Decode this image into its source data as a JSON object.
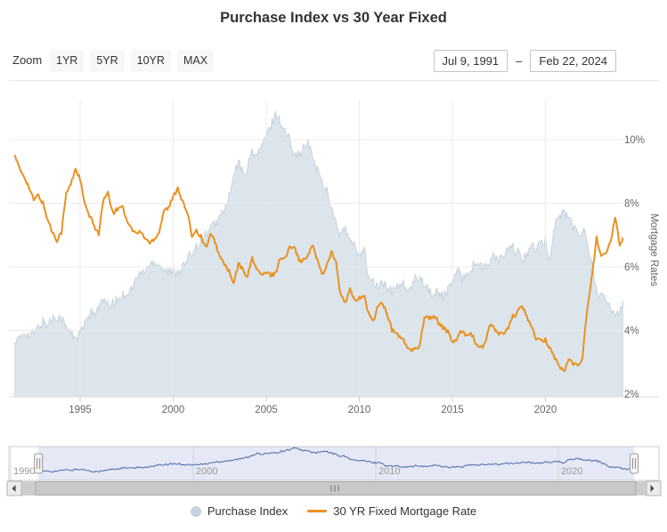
{
  "header": {
    "title": "Purchase Index vs 30 Year Fixed"
  },
  "toolbar": {
    "zoom_label": "Zoom",
    "range_buttons": [
      "1YR",
      "5YR",
      "10YR",
      "MAX"
    ],
    "date_from": "Jul 9, 1991",
    "date_separator": "–",
    "date_to": "Feb 22, 2024"
  },
  "colors": {
    "title_text": "#333333",
    "axis_text": "#666666",
    "nav_text": "#999999",
    "grid": "#e7e7e7",
    "axis_line": "#d8d8d8",
    "tick": "#cccccc",
    "accent_orange": "#ea9120",
    "area_fill": "#dce5ec",
    "area_edge": "#c5d3de",
    "legend_circle": "#c3d3e0",
    "navigator_line": "#4a67a8",
    "navigator_mask": "#5b77be",
    "scrollbar_track": "#cccccc",
    "scrollbar_thumb": "#c8c8c8",
    "scrollbar_border": "#aaaaaa",
    "scrollbar_grip": "#777777",
    "scrollbar_button": "#ececec",
    "scrollbar_arrow": "#4a4a4a"
  },
  "chart_data": {
    "type": "line",
    "title": "Purchase Index vs 30 Year Fixed",
    "x_unit": "decimal_year",
    "x": [
      1991.5,
      1991.75,
      1992,
      1992.25,
      1992.5,
      1992.75,
      1993,
      1993.25,
      1993.5,
      1993.75,
      1994,
      1994.25,
      1994.5,
      1994.75,
      1995,
      1995.25,
      1995.5,
      1995.75,
      1996,
      1996.25,
      1996.5,
      1996.75,
      1997,
      1997.25,
      1997.5,
      1997.75,
      1998,
      1998.25,
      1998.5,
      1998.75,
      1999,
      1999.25,
      1999.5,
      1999.75,
      2000,
      2000.25,
      2000.5,
      2000.75,
      2001,
      2001.25,
      2001.5,
      2001.75,
      2002,
      2002.25,
      2002.5,
      2002.75,
      2003,
      2003.25,
      2003.5,
      2003.75,
      2004,
      2004.25,
      2004.5,
      2004.75,
      2005,
      2005.25,
      2005.5,
      2005.75,
      2006,
      2006.25,
      2006.5,
      2006.75,
      2007,
      2007.25,
      2007.5,
      2007.75,
      2008,
      2008.25,
      2008.5,
      2008.75,
      2009,
      2009.25,
      2009.5,
      2009.75,
      2010,
      2010.25,
      2010.5,
      2010.75,
      2011,
      2011.25,
      2011.5,
      2011.75,
      2012,
      2012.25,
      2012.5,
      2012.75,
      2013,
      2013.25,
      2013.5,
      2013.75,
      2014,
      2014.25,
      2014.5,
      2014.75,
      2015,
      2015.25,
      2015.5,
      2015.75,
      2016,
      2016.25,
      2016.5,
      2016.75,
      2017,
      2017.25,
      2017.5,
      2017.75,
      2018,
      2018.25,
      2018.5,
      2018.75,
      2019,
      2019.25,
      2019.5,
      2019.75,
      2020,
      2020.25,
      2020.5,
      2020.75,
      2021,
      2021.25,
      2021.5,
      2021.75,
      2022,
      2022.25,
      2022.5,
      2022.75,
      2023,
      2023.25,
      2023.5,
      2023.75,
      2024,
      2024.15
    ],
    "series": [
      {
        "name": "Purchase Index",
        "type": "area",
        "color": "#dce5ec",
        "axis": "hidden (no visible scale)",
        "values": [
          90,
          95,
          110,
          100,
          105,
          115,
          125,
          120,
          130,
          135,
          130,
          115,
          105,
          100,
          105,
          120,
          135,
          140,
          150,
          160,
          150,
          155,
          160,
          168,
          172,
          178,
          195,
          205,
          210,
          220,
          225,
          220,
          212,
          208,
          205,
          210,
          215,
          225,
          240,
          252,
          258,
          270,
          278,
          288,
          298,
          310,
          330,
          365,
          390,
          370,
          380,
          410,
          398,
          418,
          430,
          450,
          470,
          458,
          440,
          428,
          408,
          400,
          412,
          420,
          398,
          378,
          355,
          345,
          315,
          285,
          268,
          278,
          258,
          248,
          238,
          248,
          198,
          188,
          183,
          190,
          180,
          173,
          183,
          190,
          180,
          175,
          195,
          200,
          188,
          178,
          168,
          173,
          168,
          175,
          193,
          208,
          198,
          203,
          213,
          223,
          218,
          213,
          223,
          233,
          228,
          233,
          243,
          248,
          238,
          228,
          238,
          250,
          245,
          252,
          258,
          228,
          288,
          298,
          308,
          298,
          282,
          272,
          278,
          258,
          218,
          178,
          168,
          158,
          148,
          138,
          145,
          160
        ]
      },
      {
        "name": "30 YR Fixed Mortgage Rate",
        "type": "line",
        "color": "#ea9120",
        "axis": "right",
        "unit": "%",
        "values": [
          9.5,
          9.05,
          8.85,
          8.5,
          8.1,
          8.25,
          8.0,
          7.5,
          7.1,
          6.85,
          7.1,
          8.3,
          8.6,
          9.1,
          8.75,
          7.95,
          7.6,
          7.3,
          7.05,
          8.1,
          8.3,
          7.7,
          7.8,
          7.95,
          7.5,
          7.2,
          7.05,
          7.1,
          6.9,
          6.75,
          6.9,
          7.1,
          7.8,
          7.85,
          8.2,
          8.5,
          8.05,
          7.7,
          7.0,
          7.15,
          6.95,
          6.6,
          7.0,
          6.8,
          6.3,
          6.1,
          5.85,
          5.45,
          6.1,
          5.9,
          5.7,
          6.3,
          5.9,
          5.75,
          5.8,
          5.75,
          5.8,
          6.3,
          6.25,
          6.6,
          6.7,
          6.2,
          6.2,
          6.35,
          6.7,
          6.2,
          5.75,
          6.05,
          6.5,
          6.1,
          5.1,
          4.85,
          5.3,
          4.9,
          5.05,
          5.1,
          4.55,
          4.25,
          4.8,
          4.85,
          4.5,
          4.0,
          3.9,
          3.8,
          3.55,
          3.35,
          3.4,
          3.55,
          4.45,
          4.4,
          4.45,
          4.25,
          4.1,
          3.95,
          3.65,
          3.7,
          4.0,
          3.85,
          3.95,
          3.6,
          3.45,
          3.55,
          4.2,
          4.05,
          3.9,
          3.9,
          4.05,
          4.45,
          4.55,
          4.8,
          4.45,
          4.1,
          3.75,
          3.65,
          3.7,
          3.45,
          3.15,
          2.85,
          2.7,
          3.1,
          2.95,
          2.9,
          3.2,
          4.7,
          5.7,
          6.95,
          6.3,
          6.4,
          6.8,
          7.6,
          6.7,
          6.9
        ]
      }
    ],
    "yaxis": {
      "title": "Mortgage Rates",
      "side": "right",
      "ticks": [
        "2%",
        "4%",
        "6%",
        "8%",
        "10%"
      ],
      "tick_values": [
        2,
        4,
        6,
        8,
        10
      ],
      "range": [
        2,
        10.4
      ],
      "grid": true
    },
    "xaxis": {
      "ticks": [
        1995,
        2000,
        2005,
        2010,
        2015,
        2020
      ],
      "range": [
        1991.2,
        2024.2
      ],
      "grid": true
    },
    "navigator": {
      "ticks": [
        1990,
        2000,
        2010,
        2020
      ],
      "range": [
        1990,
        2024.2
      ],
      "selected": [
        1991.52,
        2024.15
      ]
    },
    "legend_position": "bottom-center"
  },
  "legend": {
    "items": [
      {
        "label": "Purchase Index",
        "marker": "circle",
        "color": "#c3d3e0"
      },
      {
        "label": "30 YR Fixed Mortgage Rate",
        "marker": "line",
        "color": "#ea9120"
      }
    ]
  }
}
